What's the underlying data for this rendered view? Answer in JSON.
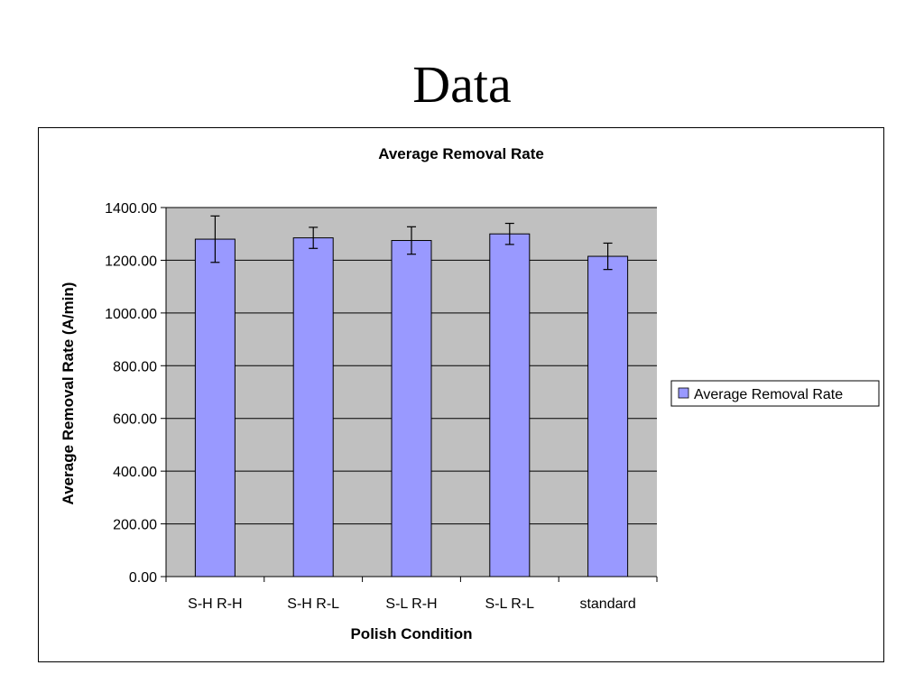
{
  "slide": {
    "title": "Data"
  },
  "chart_data": {
    "type": "bar",
    "title": "Average Removal Rate",
    "xlabel": "Polish Condition",
    "ylabel": "Average Removal Rate (A/min)",
    "categories": [
      "S-H R-H",
      "S-H R-L",
      "S-L R-H",
      "S-L R-L",
      "standard"
    ],
    "series": [
      {
        "name": "Average Removal Rate",
        "values": [
          1280,
          1285,
          1275,
          1300,
          1215
        ],
        "error": [
          88,
          40,
          52,
          40,
          50
        ]
      }
    ],
    "ylim": [
      0,
      1400
    ],
    "yticks": [
      0,
      200,
      400,
      600,
      800,
      1000,
      1200,
      1400
    ],
    "ytick_labels": [
      "0.00",
      "200.00",
      "400.00",
      "600.00",
      "800.00",
      "1000.00",
      "1200.00",
      "1400.00"
    ],
    "grid": true,
    "legend_position": "right",
    "colors": {
      "bar": "#9999ff",
      "plot_bg": "#c0c0c0",
      "gridline": "#000000"
    }
  }
}
